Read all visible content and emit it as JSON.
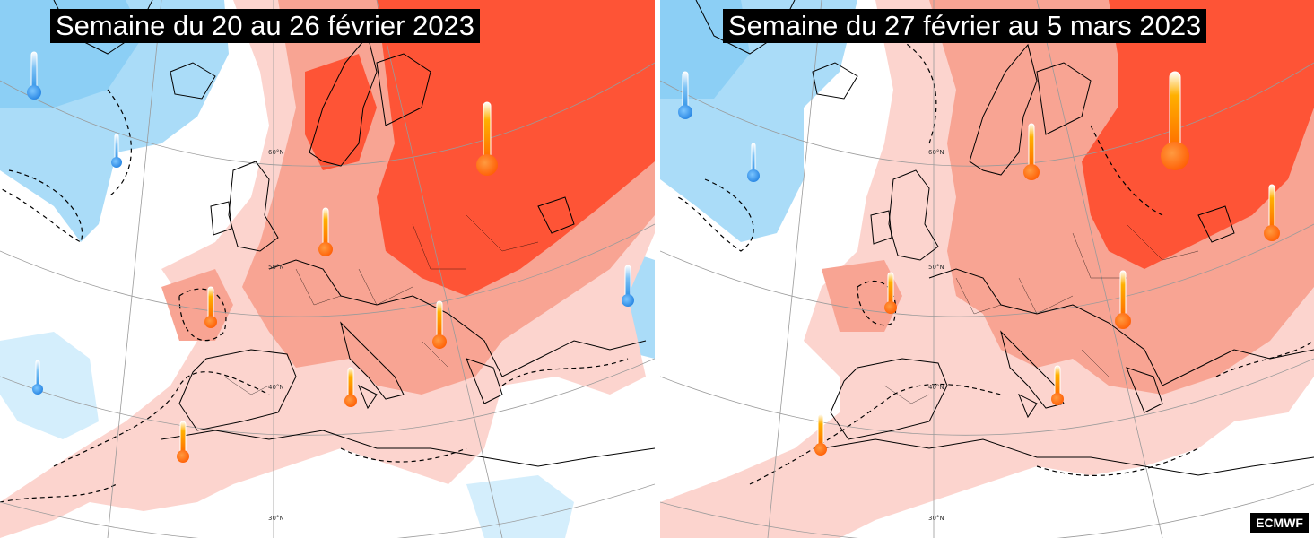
{
  "panels": [
    {
      "title": "Semaine du 20 au 26 février 2023",
      "latitude_labels": [
        "60°N",
        "50°N",
        "40°N",
        "30°N"
      ],
      "thermometers": [
        {
          "level": "cold"
        },
        {
          "level": "cold"
        },
        {
          "level": "warm"
        },
        {
          "level": "warm"
        },
        {
          "level": "warm"
        },
        {
          "level": "warm"
        },
        {
          "level": "warm"
        },
        {
          "level": "warm"
        },
        {
          "level": "cold"
        },
        {
          "level": "cold"
        }
      ]
    },
    {
      "title": "Semaine du 27 février au 5 mars 2023",
      "latitude_labels": [
        "60°N",
        "50°N",
        "40°N",
        "30°N"
      ],
      "thermometers": [
        {
          "level": "cold"
        },
        {
          "level": "cold"
        },
        {
          "level": "warm"
        },
        {
          "level": "warm"
        },
        {
          "level": "warm"
        },
        {
          "level": "warm"
        },
        {
          "level": "warm"
        },
        {
          "level": "warm"
        }
      ]
    }
  ],
  "source": "ECMWF",
  "legend_colors": {
    "very_warm": "#fe5436",
    "warm": "#f8a493",
    "slightly_warm": "#fcd4ce",
    "neutral": "#ffffff",
    "slightly_cold": "#d4eefc",
    "cold": "#aadcf8",
    "thermometer_warm": "#ff7000",
    "thermometer_cold": "#2b8fe6"
  },
  "icons": [
    "thermometer-warm-icon",
    "thermometer-cold-icon"
  ]
}
